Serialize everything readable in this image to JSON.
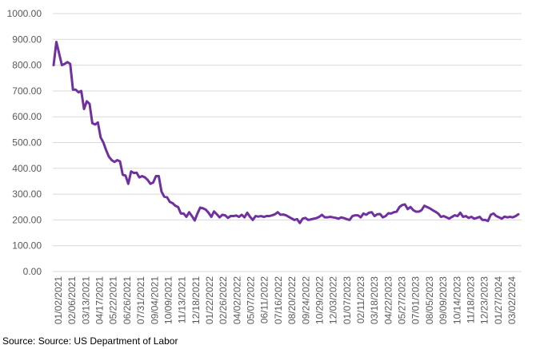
{
  "source_note": "Source: Source: US Department of Labor",
  "colors": {
    "series": "#7030a0",
    "gridline": "#d9d9d9",
    "tick_text": "#595959"
  },
  "chart_data": {
    "type": "line",
    "title": "",
    "xlabel": "",
    "ylabel": "",
    "ylim": [
      0,
      1000
    ],
    "grid": true,
    "legend": "none",
    "y_ticks": [
      "0.00",
      "100.00",
      "200.00",
      "300.00",
      "400.00",
      "500.00",
      "600.00",
      "700.00",
      "800.00",
      "900.00",
      "1000.00"
    ],
    "x_tick_labels": [
      "01/02/2021",
      "02/06/2021",
      "03/13/2021",
      "04/17/2021",
      "05/22/2021",
      "06/26/2021",
      "07/31/2021",
      "09/04/2021",
      "10/09/2021",
      "11/13/2021",
      "12/18/2021",
      "01/22/2022",
      "02/26/2022",
      "04/02/2022",
      "05/07/2022",
      "06/11/2022",
      "07/16/2022",
      "08/20/2022",
      "09/24/2022",
      "10/29/2022",
      "12/03/2022",
      "01/07/2023",
      "02/11/2023",
      "03/18/2023",
      "04/22/2023",
      "05/27/2023",
      "07/01/2023",
      "08/05/2023",
      "09/09/2023",
      "10/14/2023",
      "11/18/2023",
      "12/23/2023",
      "01/27/2024",
      "03/02/2024"
    ],
    "series": [
      {
        "values": [
          800,
          890,
          845,
          800,
          805,
          812,
          805,
          705,
          705,
          695,
          700,
          630,
          660,
          650,
          575,
          570,
          578,
          520,
          500,
          470,
          445,
          432,
          425,
          432,
          427,
          375,
          372,
          340,
          388,
          382,
          383,
          365,
          370,
          365,
          355,
          340,
          345,
          370,
          370,
          310,
          290,
          288,
          270,
          265,
          255,
          250,
          225,
          225,
          212,
          230,
          215,
          198,
          225,
          248,
          245,
          240,
          228,
          212,
          233,
          222,
          210,
          220,
          218,
          208,
          215,
          215,
          217,
          212,
          220,
          210,
          228,
          212,
          200,
          215,
          213,
          215,
          212,
          215,
          215,
          218,
          222,
          230,
          220,
          221,
          218,
          212,
          206,
          200,
          203,
          188,
          205,
          208,
          200,
          202,
          205,
          207,
          212,
          220,
          210,
          210,
          212,
          210,
          208,
          205,
          210,
          207,
          203,
          200,
          215,
          218,
          218,
          210,
          225,
          220,
          228,
          230,
          215,
          222,
          223,
          210,
          215,
          226,
          225,
          230,
          232,
          250,
          258,
          260,
          242,
          250,
          238,
          232,
          232,
          238,
          255,
          250,
          245,
          238,
          232,
          225,
          212,
          215,
          210,
          205,
          212,
          218,
          215,
          228,
          212,
          215,
          208,
          212,
          205,
          208,
          212,
          200,
          200,
          196,
          220,
          225,
          215,
          210,
          205,
          213,
          210,
          212,
          210,
          215,
          222
        ]
      }
    ]
  }
}
